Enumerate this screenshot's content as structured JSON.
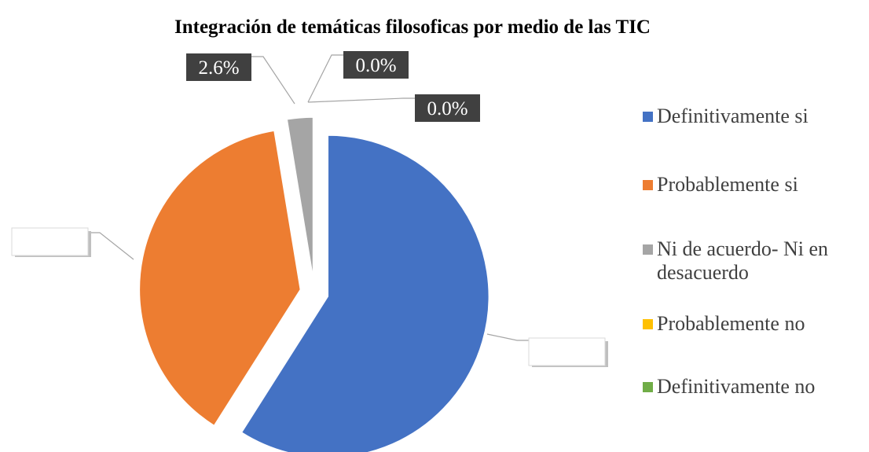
{
  "chart_data": {
    "type": "pie",
    "title": "Integración de temáticas filosoficas por medio de las TIC",
    "categories": [
      "Definitivamente si",
      "Probablemente si",
      "Ni de acuerdo- Ni en desacuerdo",
      "Probablemente no",
      "Definitivamente no"
    ],
    "values": [
      59.0,
      38.4,
      2.6,
      0.0,
      0.0
    ],
    "value_labels": [
      null,
      null,
      "2.6%",
      "0.0%",
      "0.0%"
    ],
    "colors": [
      "#4472c4",
      "#ed7d31",
      "#a5a5a5",
      "#ffc000",
      "#70ad47"
    ],
    "legend": "right"
  }
}
